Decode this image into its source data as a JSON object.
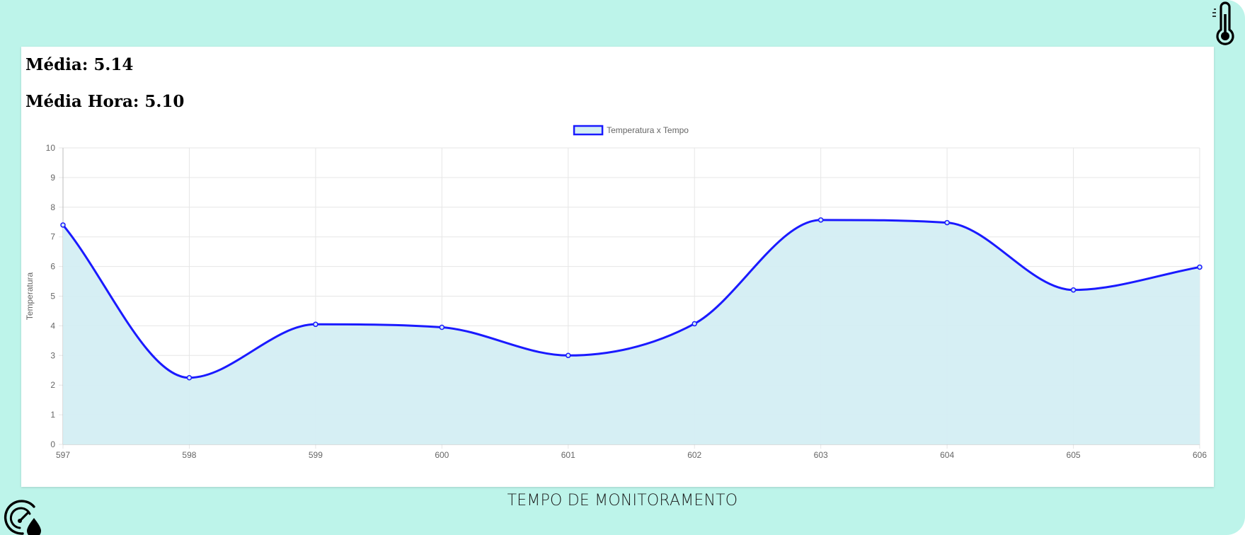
{
  "header": {
    "icon": "thermometer-icon"
  },
  "stats": {
    "media_label": "Média:",
    "media_value": "5.14",
    "media_hora_label": "Média Hora:",
    "media_hora_value": "5.10"
  },
  "footer": {
    "x_title": "TEMPO DE MONITORAMENTO",
    "icon": "gauge-drop-icon"
  },
  "colors": {
    "background": "#bdf4ea",
    "line": "#1a1aff",
    "fill": "#d4eef3",
    "grid": "#e6e6e6",
    "tick": "#666666"
  },
  "chart_data": {
    "type": "line",
    "legend_position": "top-center",
    "grid": true,
    "fill": true,
    "ylabel": "Temperatura",
    "ylim": [
      0,
      10
    ],
    "yticks": [
      0,
      1,
      2,
      3,
      4,
      5,
      6,
      7,
      8,
      9,
      10
    ],
    "categories": [
      "597",
      "598",
      "599",
      "600",
      "601",
      "602",
      "603",
      "604",
      "605",
      "606"
    ],
    "series": [
      {
        "name": "Temperatura x Tempo",
        "values": [
          7.4,
          2.25,
          4.05,
          3.95,
          3.0,
          4.07,
          7.57,
          7.48,
          5.21,
          5.98
        ]
      }
    ]
  }
}
